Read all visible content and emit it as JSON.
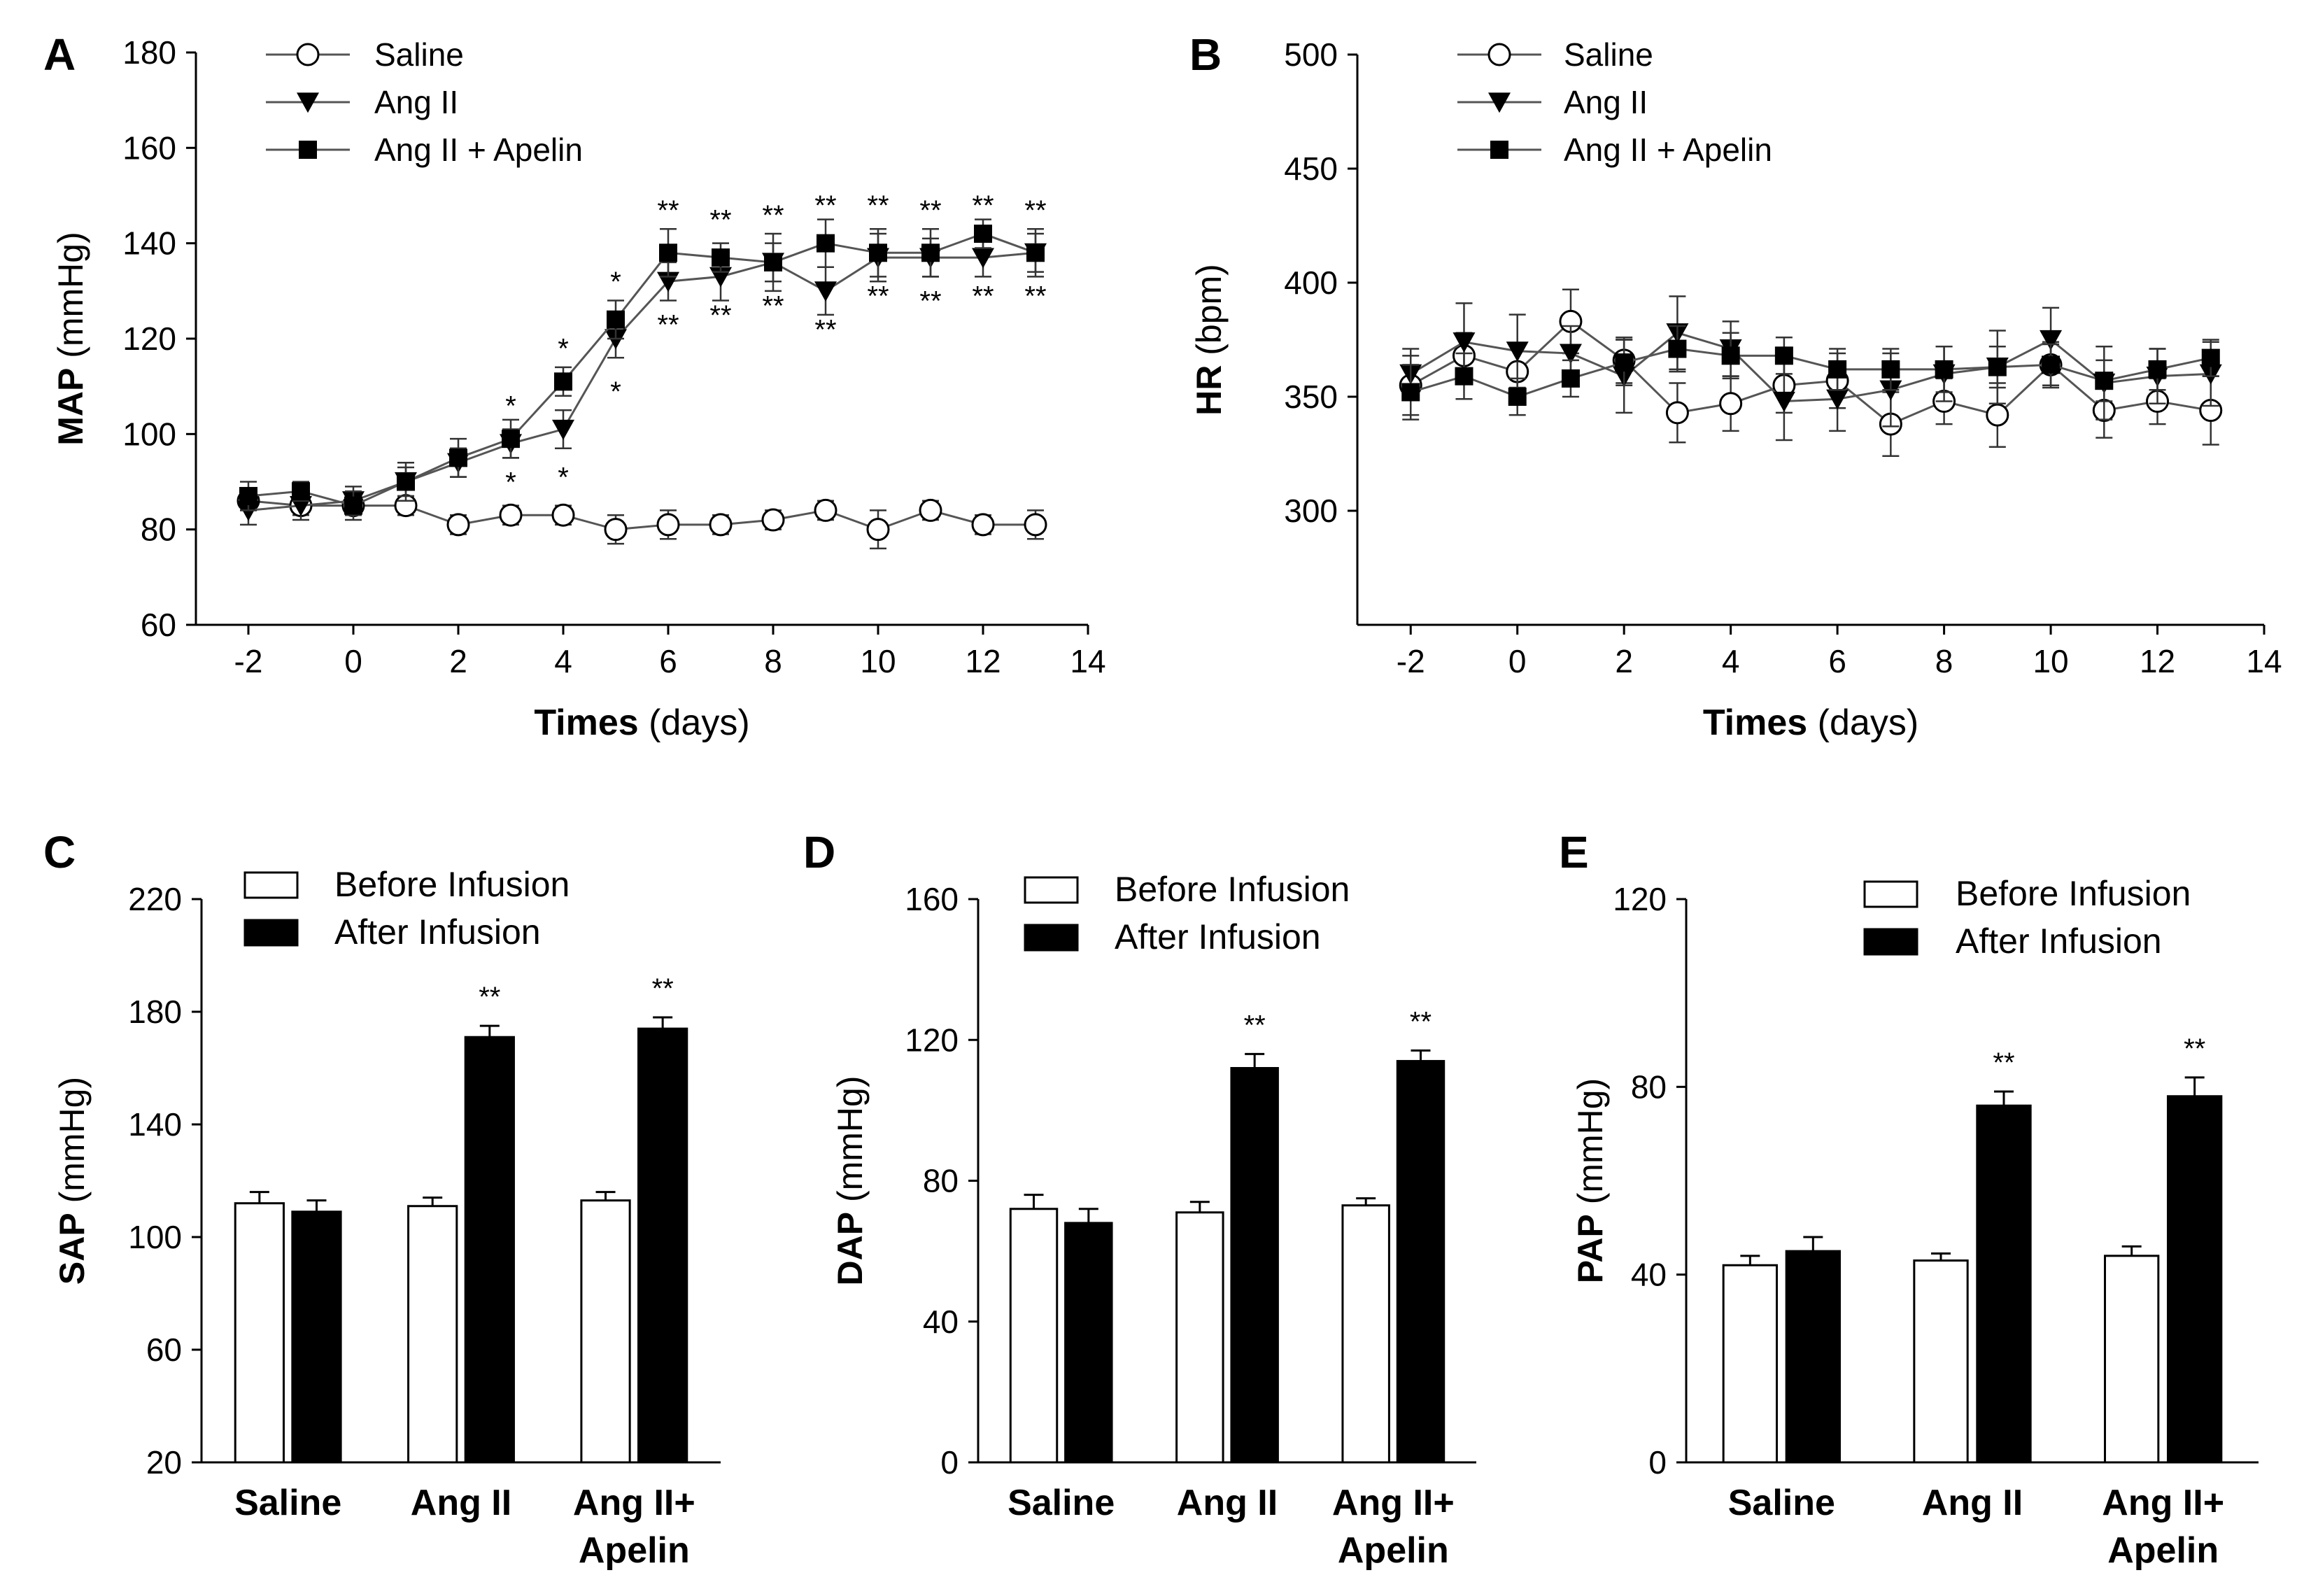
{
  "chart_data": [
    {
      "id": "A",
      "letter": "A",
      "type": "line",
      "xlabel_bold": "Times",
      "xlabel_rest": " (days)",
      "ylabel_bold": "MAP",
      "ylabel_rest": " (mmHg)",
      "xlim": [
        -3,
        14
      ],
      "ylim": [
        60,
        180
      ],
      "xticks": [
        -2,
        0,
        2,
        4,
        6,
        8,
        10,
        12,
        14
      ],
      "yticks": [
        60,
        80,
        100,
        120,
        140,
        160,
        180
      ],
      "x": [
        -2,
        -1,
        0,
        1,
        2,
        3,
        4,
        5,
        6,
        7,
        8,
        9,
        10,
        11,
        12,
        13
      ],
      "series": [
        {
          "name": "Saline",
          "marker": "circle",
          "values": [
            86,
            85,
            85,
            85,
            81,
            83,
            83,
            80,
            81,
            81,
            82,
            84,
            80,
            84,
            81,
            81
          ],
          "errors": [
            2,
            2,
            2,
            2,
            2,
            2,
            2,
            3,
            3,
            2,
            2,
            2,
            4,
            2,
            2,
            3
          ]
        },
        {
          "name": "Ang II",
          "marker": "triangle",
          "values": [
            84,
            85,
            86,
            90,
            94,
            98,
            101,
            120,
            132,
            133,
            136,
            130,
            137,
            137,
            137,
            138
          ],
          "errors": [
            3,
            3,
            3,
            3,
            3,
            3,
            4,
            4,
            4,
            5,
            4,
            5,
            5,
            4,
            4,
            4
          ]
        },
        {
          "name": "Ang II + Apelin",
          "marker": "square",
          "values": [
            87,
            88,
            85,
            90,
            95,
            99,
            111,
            124,
            138,
            137,
            136,
            140,
            138,
            138,
            142,
            138
          ],
          "errors": [
            3,
            2,
            3,
            4,
            4,
            4,
            3,
            4,
            5,
            3,
            6,
            5,
            5,
            5,
            3,
            5
          ]
        }
      ],
      "annotations": [
        {
          "x": 3,
          "y": 106,
          "text": "*"
        },
        {
          "x": 4,
          "y": 118,
          "text": "*"
        },
        {
          "x": 5,
          "y": 132,
          "text": "*"
        },
        {
          "x": 6,
          "y": 147,
          "text": "**"
        },
        {
          "x": 7,
          "y": 145,
          "text": "**"
        },
        {
          "x": 8,
          "y": 146,
          "text": "**"
        },
        {
          "x": 9,
          "y": 148,
          "text": "**"
        },
        {
          "x": 10,
          "y": 148,
          "text": "**"
        },
        {
          "x": 11,
          "y": 147,
          "text": "**"
        },
        {
          "x": 12,
          "y": 148,
          "text": "**"
        },
        {
          "x": 13,
          "y": 147,
          "text": "**"
        },
        {
          "x": 3,
          "y": 90,
          "text": "*"
        },
        {
          "x": 4,
          "y": 91,
          "text": "*"
        },
        {
          "x": 5,
          "y": 109,
          "text": "*"
        },
        {
          "x": 6,
          "y": 123,
          "text": "**"
        },
        {
          "x": 7,
          "y": 125,
          "text": "**"
        },
        {
          "x": 8,
          "y": 127,
          "text": "**"
        },
        {
          "x": 9,
          "y": 122,
          "text": "**"
        },
        {
          "x": 10,
          "y": 129,
          "text": "**"
        },
        {
          "x": 11,
          "y": 128,
          "text": "**"
        },
        {
          "x": 12,
          "y": 129,
          "text": "**"
        },
        {
          "x": 13,
          "y": 129,
          "text": "**"
        }
      ]
    },
    {
      "id": "B",
      "letter": "B",
      "type": "line",
      "xlabel_bold": "Times",
      "xlabel_rest": " (days)",
      "ylabel_bold": "HR",
      "ylabel_rest": " (bpm)",
      "xlim": [
        -3,
        14
      ],
      "ylim": [
        250,
        500
      ],
      "xticks": [
        -2,
        0,
        2,
        4,
        6,
        8,
        10,
        12,
        14
      ],
      "yticks": [
        300,
        350,
        400,
        450,
        500
      ],
      "x": [
        -2,
        -1,
        0,
        1,
        2,
        3,
        4,
        5,
        6,
        7,
        8,
        9,
        10,
        11,
        12,
        13
      ],
      "series": [
        {
          "name": "Saline",
          "marker": "circle",
          "values": [
            355,
            368,
            361,
            383,
            366,
            343,
            347,
            355,
            357,
            338,
            348,
            342,
            364,
            344,
            348,
            344
          ],
          "errors": [
            13,
            10,
            12,
            14,
            10,
            13,
            12,
            12,
            12,
            14,
            10,
            14,
            10,
            12,
            10,
            15
          ]
        },
        {
          "name": "Ang II",
          "marker": "triangle",
          "values": [
            360,
            374,
            370,
            369,
            359,
            378,
            371,
            348,
            349,
            353,
            360,
            363,
            375,
            356,
            359,
            360
          ],
          "errors": [
            11,
            17,
            16,
            12,
            16,
            16,
            12,
            17,
            14,
            16,
            12,
            16,
            14,
            16,
            12,
            14
          ]
        },
        {
          "name": "Ang II + Apelin",
          "marker": "square",
          "values": [
            352,
            359,
            350,
            358,
            365,
            371,
            368,
            368,
            362,
            362,
            362,
            363,
            364,
            357,
            362,
            367
          ],
          "errors": [
            12,
            10,
            8,
            8,
            10,
            10,
            10,
            8,
            9,
            9,
            10,
            9,
            9,
            9,
            9,
            8
          ]
        }
      ],
      "annotations": []
    },
    {
      "id": "C",
      "letter": "C",
      "type": "bar",
      "ylabel_bold": "SAP",
      "ylabel_rest": " (mmHg)",
      "ylim": [
        20,
        220
      ],
      "yticks": [
        20,
        60,
        100,
        140,
        180,
        220
      ],
      "categories": [
        [
          "Saline"
        ],
        [
          "Ang II"
        ],
        [
          "Ang II+",
          "Apelin"
        ]
      ],
      "series": [
        {
          "name": "Before Infusion",
          "values": [
            112,
            111,
            113
          ],
          "errors": [
            4,
            3,
            3
          ]
        },
        {
          "name": "After Infusion",
          "values": [
            109,
            171,
            174
          ],
          "errors": [
            4,
            4,
            4
          ]
        }
      ],
      "annotations": [
        {
          "category": 1,
          "series": 1,
          "text": "**"
        },
        {
          "category": 2,
          "series": 1,
          "text": "**"
        }
      ]
    },
    {
      "id": "D",
      "letter": "D",
      "type": "bar",
      "ylabel_bold": "DAP",
      "ylabel_rest": " (mmHg)",
      "ylim": [
        0,
        160
      ],
      "yticks": [
        0,
        40,
        80,
        120,
        160
      ],
      "categories": [
        [
          "Saline"
        ],
        [
          "Ang II"
        ],
        [
          "Ang II+",
          "Apelin"
        ]
      ],
      "series": [
        {
          "name": "Before Infusion",
          "values": [
            72,
            71,
            73
          ],
          "errors": [
            4,
            3,
            2
          ]
        },
        {
          "name": "After Infusion",
          "values": [
            68,
            112,
            114
          ],
          "errors": [
            4,
            4,
            3
          ]
        }
      ],
      "annotations": [
        {
          "category": 1,
          "series": 1,
          "text": "**"
        },
        {
          "category": 2,
          "series": 1,
          "text": "**"
        }
      ]
    },
    {
      "id": "E",
      "letter": "E",
      "type": "bar",
      "ylabel_bold": "PAP",
      "ylabel_rest": " (mmHg)",
      "ylim": [
        0,
        120
      ],
      "yticks": [
        0,
        40,
        80,
        120
      ],
      "categories": [
        [
          "Saline"
        ],
        [
          "Ang II"
        ],
        [
          "Ang II+",
          "Apelin"
        ]
      ],
      "series": [
        {
          "name": "Before Infusion",
          "values": [
            42,
            43,
            44
          ],
          "errors": [
            2,
            1.5,
            2
          ]
        },
        {
          "name": "After Infusion",
          "values": [
            45,
            76,
            78
          ],
          "errors": [
            3,
            3,
            4
          ]
        }
      ],
      "annotations": [
        {
          "category": 1,
          "series": 1,
          "text": "**"
        },
        {
          "category": 2,
          "series": 1,
          "text": "**"
        }
      ]
    }
  ]
}
